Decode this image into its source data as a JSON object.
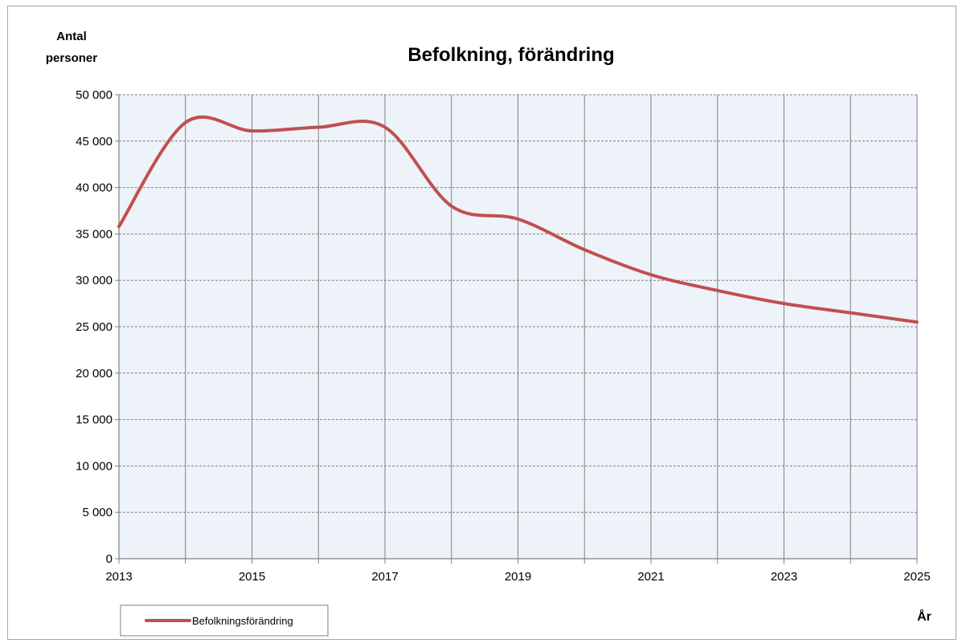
{
  "chart_data": {
    "type": "line",
    "title": "Befolkning, förändring",
    "ylabel_lines": [
      "Antal",
      "personer"
    ],
    "xlabel": "År",
    "x": [
      2013,
      2014,
      2015,
      2016,
      2017,
      2018,
      2019,
      2020,
      2021,
      2022,
      2023,
      2024,
      2025
    ],
    "x_tick_labels": [
      "2013",
      "2015",
      "2017",
      "2019",
      "2021",
      "2023",
      "2025"
    ],
    "x_tick_values": [
      2013,
      2015,
      2017,
      2019,
      2021,
      2023,
      2025
    ],
    "y_tick_labels": [
      "0",
      "5 000",
      "10 000",
      "15 000",
      "20 000",
      "25 000",
      "30 000",
      "35 000",
      "40 000",
      "45 000",
      "50 000"
    ],
    "y_tick_values": [
      0,
      5000,
      10000,
      15000,
      20000,
      25000,
      30000,
      35000,
      40000,
      45000,
      50000
    ],
    "xlim": [
      2013,
      2025
    ],
    "ylim": [
      0,
      50000
    ],
    "grid": true,
    "legend_position": "bottom-left",
    "series": [
      {
        "name": "Befolkningsförändring",
        "color": "#c0504d",
        "values": [
          35800,
          47000,
          46100,
          46500,
          46500,
          38000,
          36600,
          33300,
          30600,
          28900,
          27500,
          26500,
          25500
        ]
      }
    ],
    "colors": {
      "plot_background": "#eef3fa",
      "grid_line": "#808080",
      "series": "#c0504d"
    }
  }
}
